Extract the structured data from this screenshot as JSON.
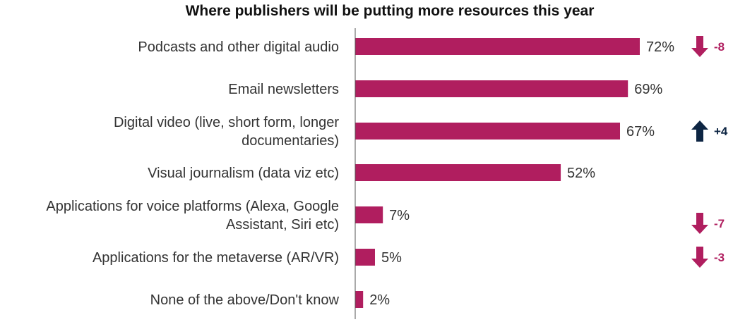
{
  "chart_data": {
    "type": "bar",
    "orientation": "horizontal",
    "title": "Where publishers will be putting more resources this year",
    "xlabel": "",
    "ylabel": "",
    "xlim": [
      0,
      100
    ],
    "unit": "%",
    "categories": [
      [
        "Podcasts and other digital audio"
      ],
      [
        "Email newsletters"
      ],
      [
        "Digital video (live, short form, longer",
        "documentaries)"
      ],
      [
        "Visual journalism (data viz etc)"
      ],
      [
        "Applications for voice platforms (Alexa, Google",
        "Assistant, Siri etc)"
      ],
      [
        "Applications for the metaverse (AR/VR)"
      ],
      [
        "None of the above/Don't know"
      ]
    ],
    "values": [
      72,
      69,
      67,
      52,
      7,
      5,
      2
    ],
    "value_labels": [
      "72%",
      "69%",
      "67%",
      "52%",
      "7%",
      "5%",
      "2%"
    ],
    "changes": [
      {
        "label": "-8",
        "direction": "down"
      },
      null,
      {
        "label": "+4",
        "direction": "up"
      },
      null,
      {
        "label": "-7",
        "direction": "down"
      },
      {
        "label": "-3",
        "direction": "down"
      },
      null
    ]
  },
  "colors": {
    "bar": "#b01e5f",
    "down_arrow": "#b01e5f",
    "up_arrow": "#0d2543",
    "axis": "#555555",
    "text": "#333333"
  }
}
